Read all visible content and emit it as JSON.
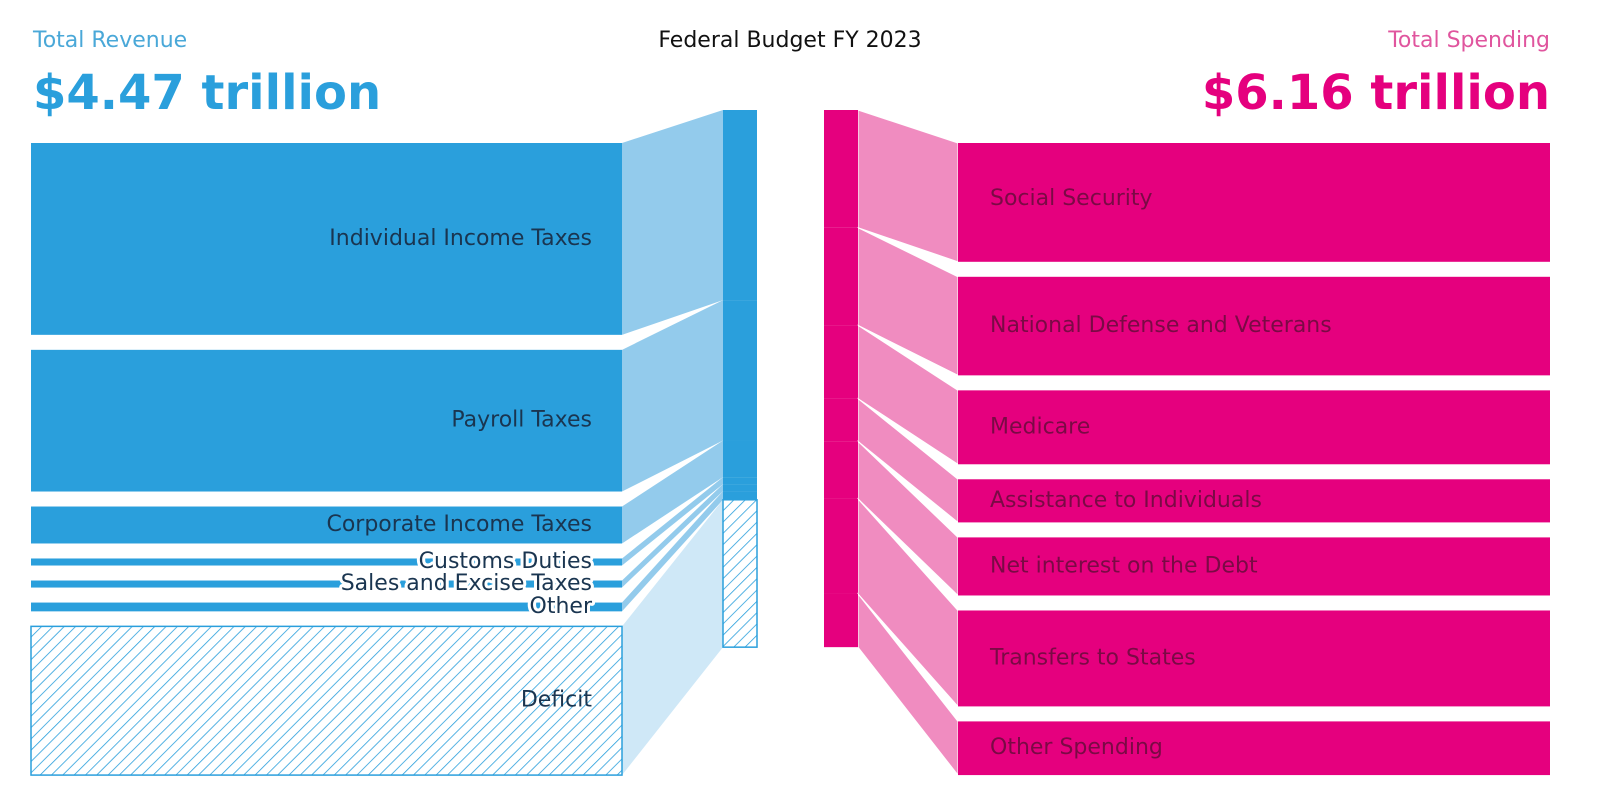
{
  "chart_data": {
    "type": "sankey",
    "title": "Federal Budget FY 2023",
    "revenue": {
      "label": "Total Revenue",
      "total": "$4.47 trillion",
      "color": "#2a9fdc",
      "link_color": "#93cbec",
      "categories": [
        "Individual Income Taxes",
        "Payroll Taxes",
        "Corporate Income Taxes",
        "Customs Duties",
        "Sales and Excise Taxes",
        "Other"
      ],
      "values": [
        2.18,
        1.61,
        0.42,
        0.08,
        0.08,
        0.1
      ]
    },
    "deficit": {
      "label": "Deficit",
      "value": 1.69,
      "color": "#2a9fdc",
      "link_color": "#cfe8f7"
    },
    "spending": {
      "label": "Total Spending",
      "total": "$6.16 trillion",
      "color": "#e5007e",
      "link_color": "#f08cc0",
      "categories": [
        "Social Security",
        "National Defense and Veterans",
        "Medicare",
        "Assistance to Individuals",
        "Net interest on the Debt",
        "Transfers to States",
        "Other Spending"
      ],
      "values": [
        1.35,
        1.12,
        0.84,
        0.49,
        0.66,
        1.09,
        0.61
      ]
    }
  }
}
